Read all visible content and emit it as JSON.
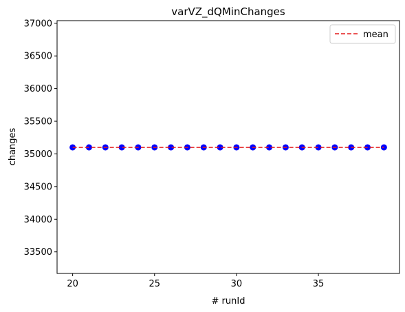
{
  "chart_data": {
    "type": "scatter",
    "title": "varVZ_dQMinChanges",
    "xlabel": "# runId",
    "ylabel": "changes",
    "xlim": [
      19.05,
      39.95
    ],
    "ylim": [
      33170,
      37040
    ],
    "xticks": [
      20,
      25,
      30,
      35
    ],
    "yticks": [
      33500,
      34000,
      34500,
      35000,
      35500,
      36000,
      36500,
      37000
    ],
    "x": [
      20,
      21,
      22,
      23,
      24,
      25,
      26,
      27,
      28,
      29,
      30,
      31,
      32,
      33,
      34,
      35,
      36,
      37,
      38,
      39
    ],
    "y": [
      35100,
      35100,
      35100,
      35100,
      35100,
      35100,
      35100,
      35100,
      35100,
      35100,
      35100,
      35100,
      35100,
      35100,
      35100,
      35100,
      35100,
      35100,
      35100,
      35100
    ],
    "mean_line": {
      "label": "mean",
      "value": 35100,
      "style": "dashed",
      "color": "#e41a1c"
    },
    "point_color": "#0000ff",
    "grid": false,
    "legend": {
      "position": "top-right",
      "entries": [
        "mean"
      ]
    }
  }
}
